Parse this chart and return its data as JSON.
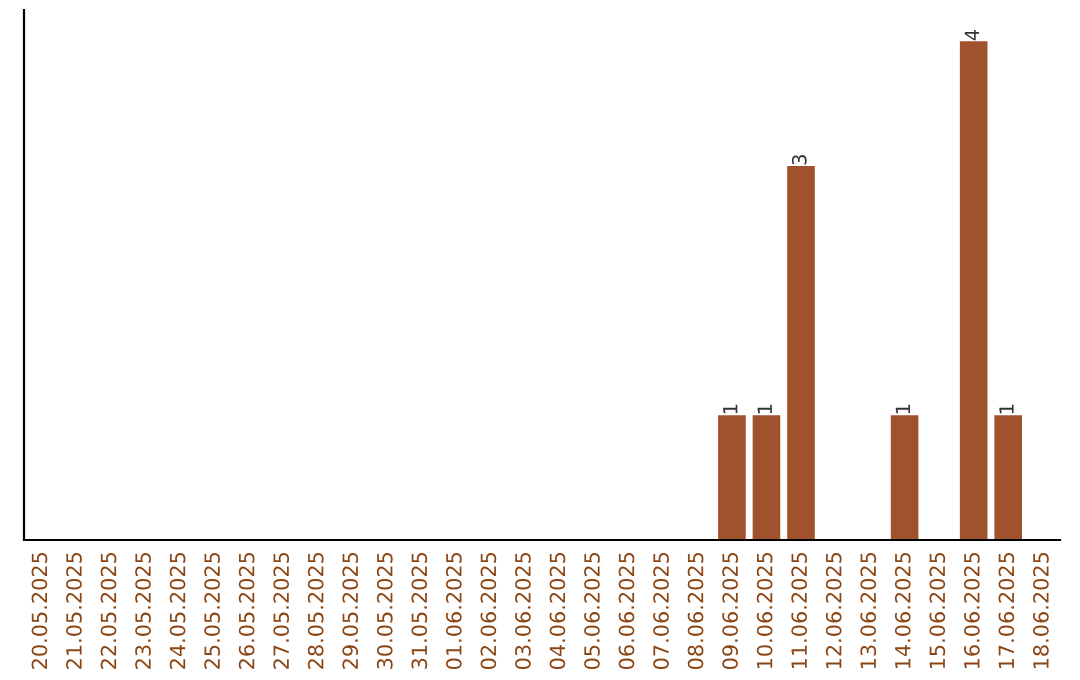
{
  "chart_data": {
    "type": "bar",
    "categories": [
      "20.05.2025",
      "21.05.2025",
      "22.05.2025",
      "23.05.2025",
      "24.05.2025",
      "25.05.2025",
      "26.05.2025",
      "27.05.2025",
      "28.05.2025",
      "29.05.2025",
      "30.05.2025",
      "31.05.2025",
      "01.06.2025",
      "02.06.2025",
      "03.06.2025",
      "04.06.2025",
      "05.06.2025",
      "06.06.2025",
      "07.06.2025",
      "08.06.2025",
      "09.06.2025",
      "10.06.2025",
      "11.06.2025",
      "12.06.2025",
      "13.06.2025",
      "14.06.2025",
      "15.06.2025",
      "16.06.2025",
      "17.06.2025",
      "18.06.2025"
    ],
    "values": [
      null,
      null,
      null,
      null,
      null,
      null,
      null,
      null,
      null,
      null,
      null,
      null,
      null,
      null,
      null,
      null,
      null,
      null,
      null,
      null,
      1,
      1,
      3,
      null,
      null,
      1,
      null,
      4,
      1,
      null
    ],
    "value_labels": [
      null,
      null,
      null,
      null,
      null,
      null,
      null,
      null,
      null,
      null,
      null,
      null,
      null,
      null,
      null,
      null,
      null,
      null,
      null,
      null,
      "1",
      "1",
      "3",
      null,
      null,
      "1",
      null,
      "4",
      "1",
      null
    ],
    "color": "#a0522d",
    "ylim": [
      0,
      4.25
    ],
    "grid": false,
    "legend": false,
    "tick_labels": "x"
  }
}
